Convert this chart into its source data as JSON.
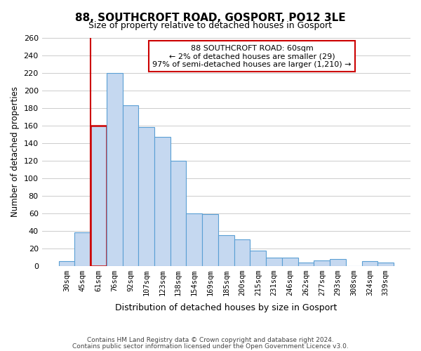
{
  "title": "88, SOUTHCROFT ROAD, GOSPORT, PO12 3LE",
  "subtitle": "Size of property relative to detached houses in Gosport",
  "xlabel": "Distribution of detached houses by size in Gosport",
  "ylabel": "Number of detached properties",
  "categories": [
    "30sqm",
    "45sqm",
    "61sqm",
    "76sqm",
    "92sqm",
    "107sqm",
    "123sqm",
    "138sqm",
    "154sqm",
    "169sqm",
    "185sqm",
    "200sqm",
    "215sqm",
    "231sqm",
    "246sqm",
    "262sqm",
    "277sqm",
    "293sqm",
    "308sqm",
    "324sqm",
    "339sqm"
  ],
  "values": [
    5,
    38,
    160,
    220,
    183,
    158,
    147,
    120,
    60,
    59,
    35,
    30,
    17,
    9,
    9,
    4,
    6,
    8,
    0,
    5,
    4
  ],
  "bar_color": "#c5d8f0",
  "bar_edge_color": "#5a9fd4",
  "highlight_bar_index": 2,
  "highlight_edge_color": "#cc0000",
  "annotation_box_edge_color": "#cc0000",
  "annotation_lines": [
    "88 SOUTHCROFT ROAD: 60sqm",
    "← 2% of detached houses are smaller (29)",
    "97% of semi-detached houses are larger (1,210) →"
  ],
  "ylim": [
    0,
    260
  ],
  "yticks": [
    0,
    20,
    40,
    60,
    80,
    100,
    120,
    140,
    160,
    180,
    200,
    220,
    240,
    260
  ],
  "footer_line1": "Contains HM Land Registry data © Crown copyright and database right 2024.",
  "footer_line2": "Contains public sector information licensed under the Open Government Licence v3.0.",
  "bg_color": "#ffffff",
  "grid_color": "#cccccc"
}
